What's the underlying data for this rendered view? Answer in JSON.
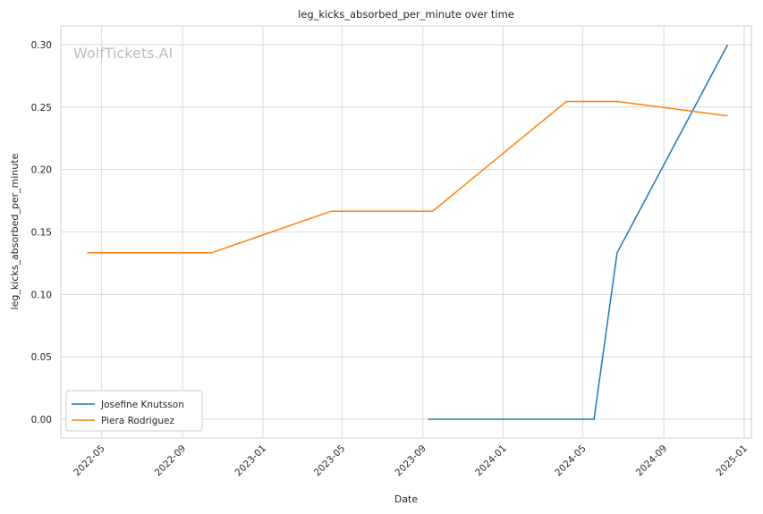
{
  "chart_data": {
    "type": "line",
    "title": "leg_kicks_absorbed_per_minute over time",
    "xlabel": "Date",
    "ylabel": "leg_kicks_absorbed_per_minute",
    "watermark": "WolfTickets.AI",
    "ylim": [
      -0.015,
      0.315
    ],
    "xlim": [
      "2022-02-28",
      "2025-01-12"
    ],
    "yticks": [
      0.0,
      0.05,
      0.1,
      0.15,
      0.2,
      0.25,
      0.3
    ],
    "ytick_labels": [
      "0.00",
      "0.05",
      "0.10",
      "0.15",
      "0.20",
      "0.25",
      "0.30"
    ],
    "xticks": [
      "2022-05-01",
      "2022-09-01",
      "2023-01-01",
      "2023-05-01",
      "2023-09-01",
      "2024-01-01",
      "2024-05-01",
      "2024-09-01",
      "2025-01-01"
    ],
    "xtick_labels": [
      "2022-05",
      "2022-09",
      "2023-01",
      "2023-05",
      "2023-09",
      "2024-01",
      "2024-05",
      "2024-09",
      "2025-01"
    ],
    "grid": true,
    "legend_position": "lower-left",
    "series": [
      {
        "name": "Josefine Knutsson",
        "color": "#1f77b4",
        "points": [
          {
            "x": "2023-09-09",
            "y": 0.0
          },
          {
            "x": "2024-05-18",
            "y": 0.0
          },
          {
            "x": "2024-06-22",
            "y": 0.1333
          },
          {
            "x": "2024-12-07",
            "y": 0.3
          }
        ]
      },
      {
        "name": "Piera Rodriguez",
        "color": "#ff7f0e",
        "points": [
          {
            "x": "2022-04-09",
            "y": 0.1333
          },
          {
            "x": "2022-10-15",
            "y": 0.1333
          },
          {
            "x": "2023-04-15",
            "y": 0.1667
          },
          {
            "x": "2023-09-16",
            "y": 0.1667
          },
          {
            "x": "2024-04-06",
            "y": 0.2545
          },
          {
            "x": "2024-06-22",
            "y": 0.2545
          },
          {
            "x": "2024-12-07",
            "y": 0.243
          }
        ]
      }
    ]
  }
}
